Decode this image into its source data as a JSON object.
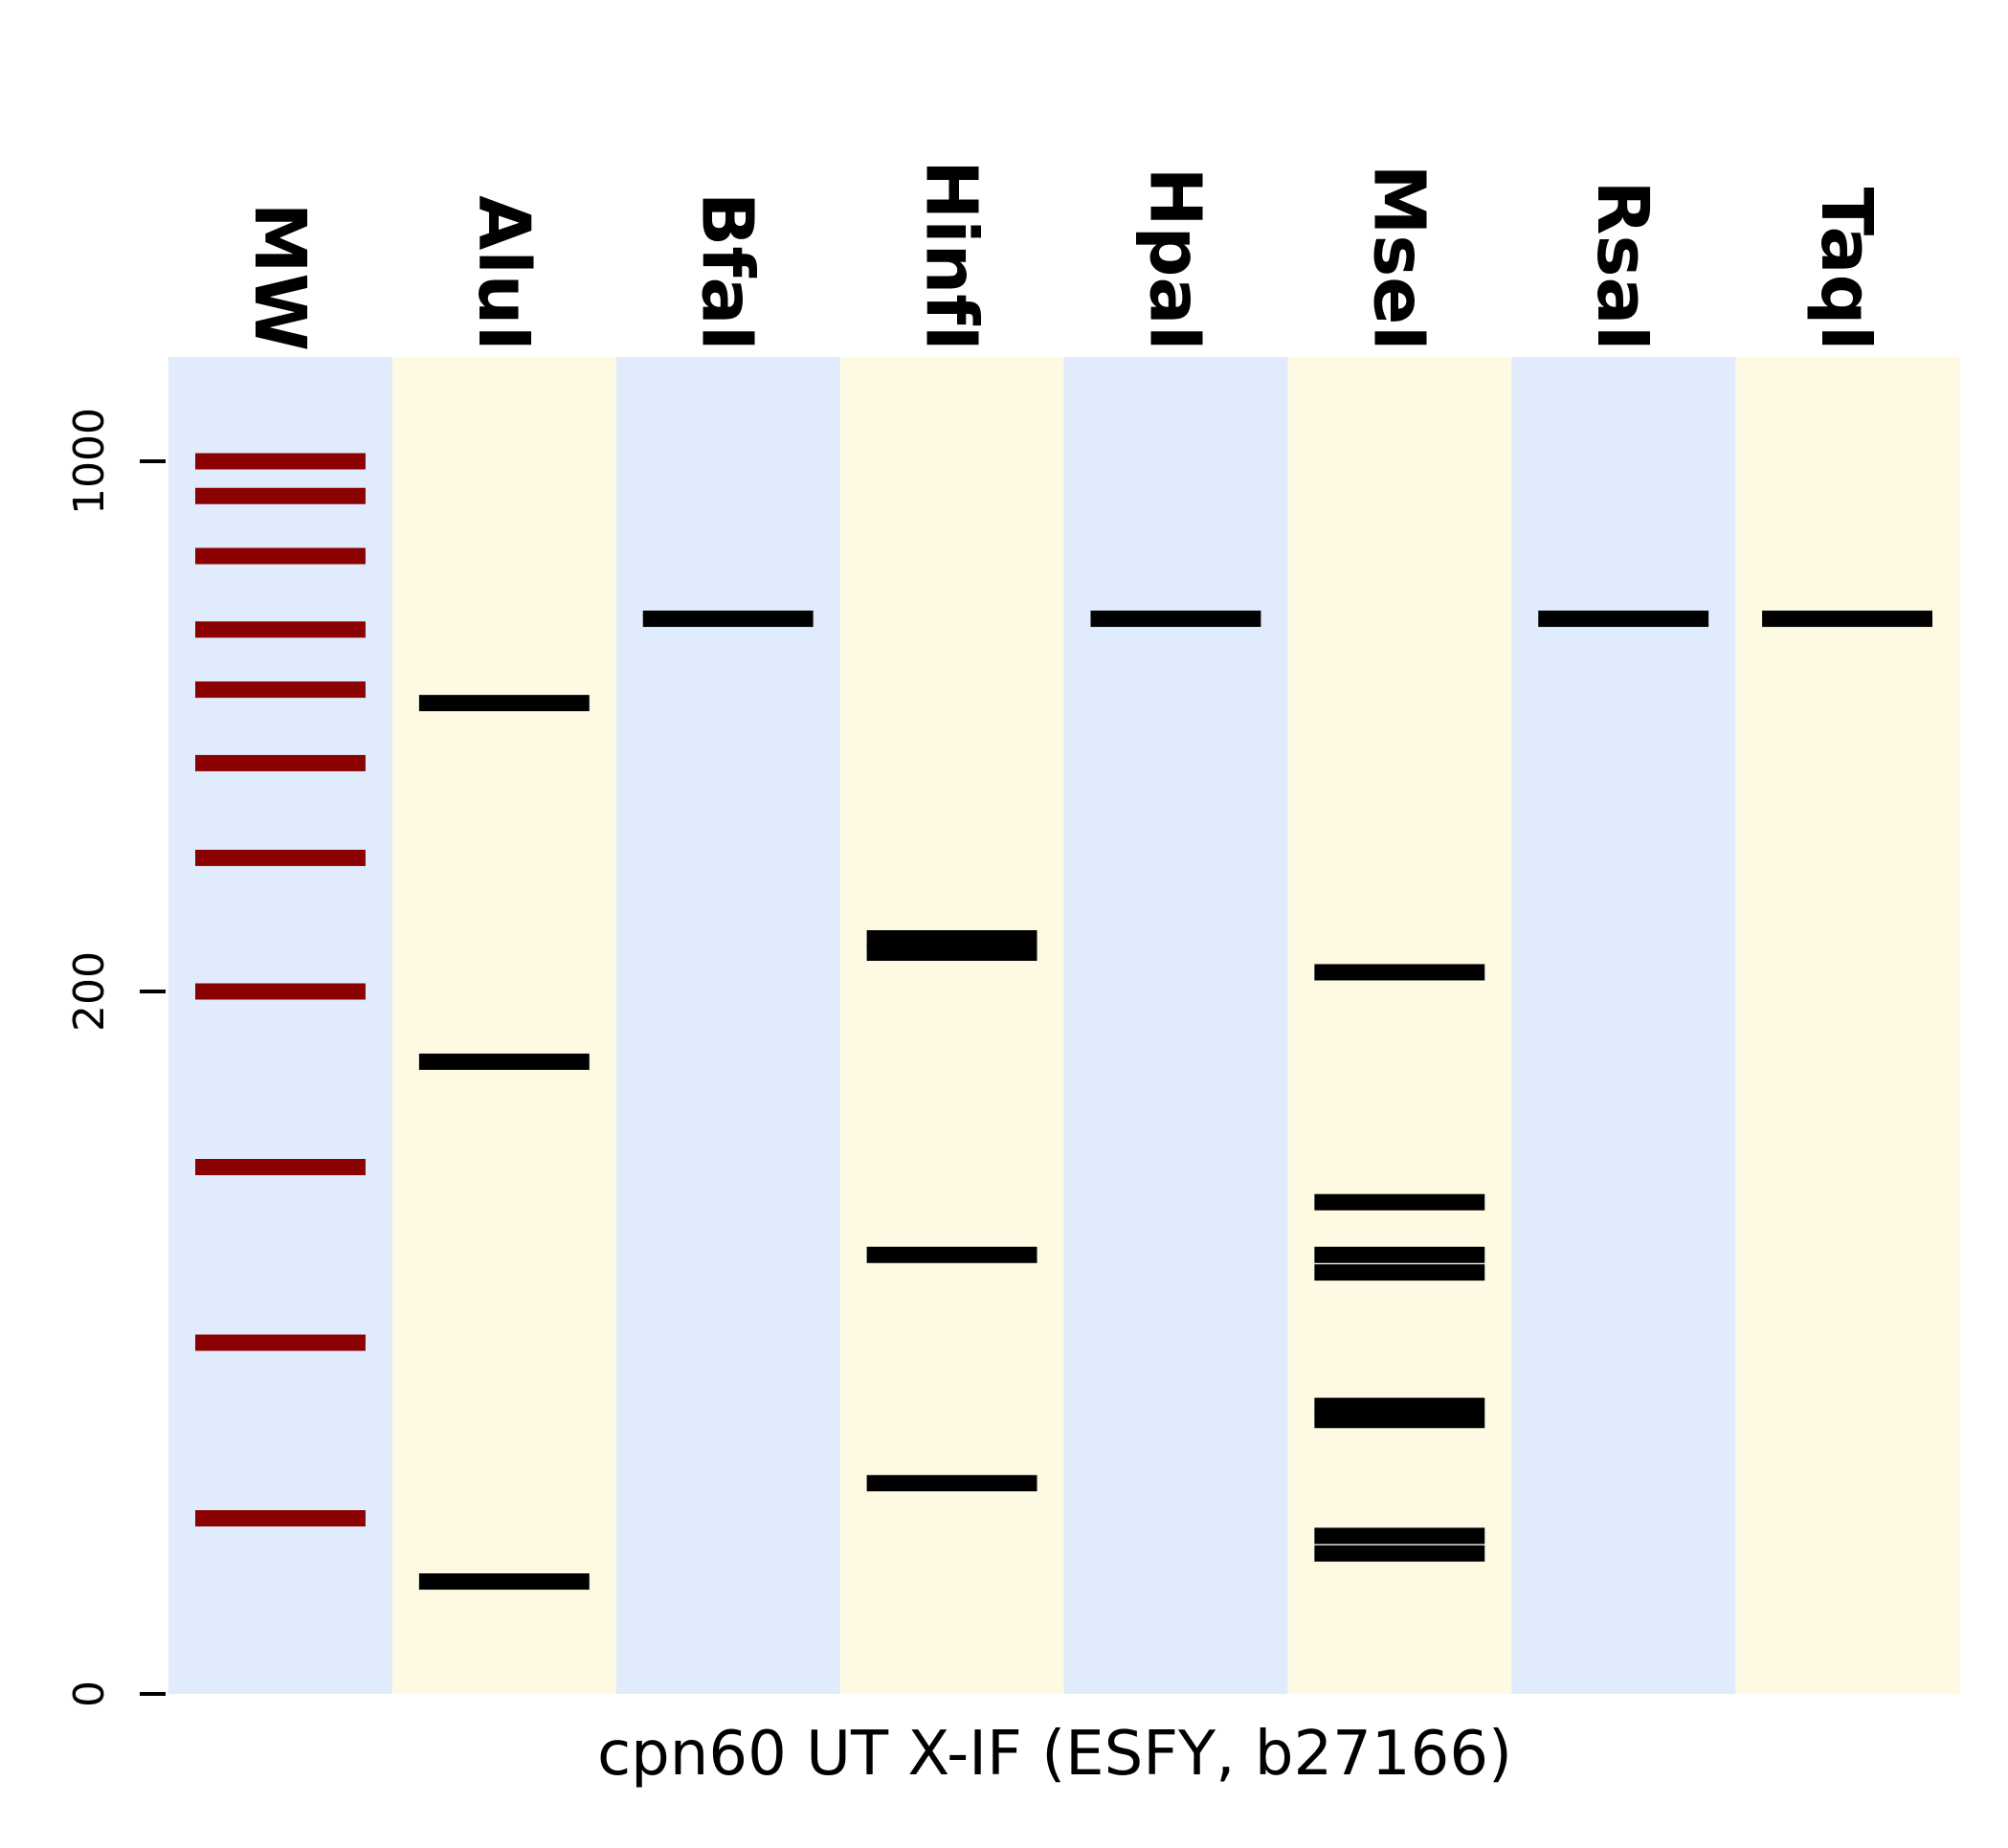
{
  "chart_data": {
    "type": "gel",
    "title": "",
    "xlabel": "cpn60 UT X-IF (ESFY, b27166)",
    "ylabel": "",
    "y_ticks": [
      0,
      200,
      1000
    ],
    "lanes": [
      {
        "name": "MW",
        "bands": [
          1000,
          900,
          750,
          600,
          500,
          400,
          300,
          200,
          150,
          100,
          50
        ]
      },
      {
        "name": "AluI",
        "bands": [
          480,
          180,
          32
        ]
      },
      {
        "name": "BfaI",
        "bands": [
          620
        ]
      },
      {
        "name": "HinfI",
        "bands": [
          235,
          225,
          125,
          60
        ]
      },
      {
        "name": "HpaI",
        "bands": [
          620
        ]
      },
      {
        "name": "MseI",
        "bands": [
          212,
          140,
          125,
          120,
          82,
          78,
          45,
          40
        ]
      },
      {
        "name": "RsaI",
        "bands": [
          620
        ]
      },
      {
        "name": "TaqI",
        "bands": [
          620
        ]
      }
    ]
  },
  "colors": {
    "lane_light_blue": "#e0ebfc",
    "lane_light_yellow": "#fdf9e3",
    "marker_band": "#8b0000",
    "sample_band": "#000000"
  }
}
